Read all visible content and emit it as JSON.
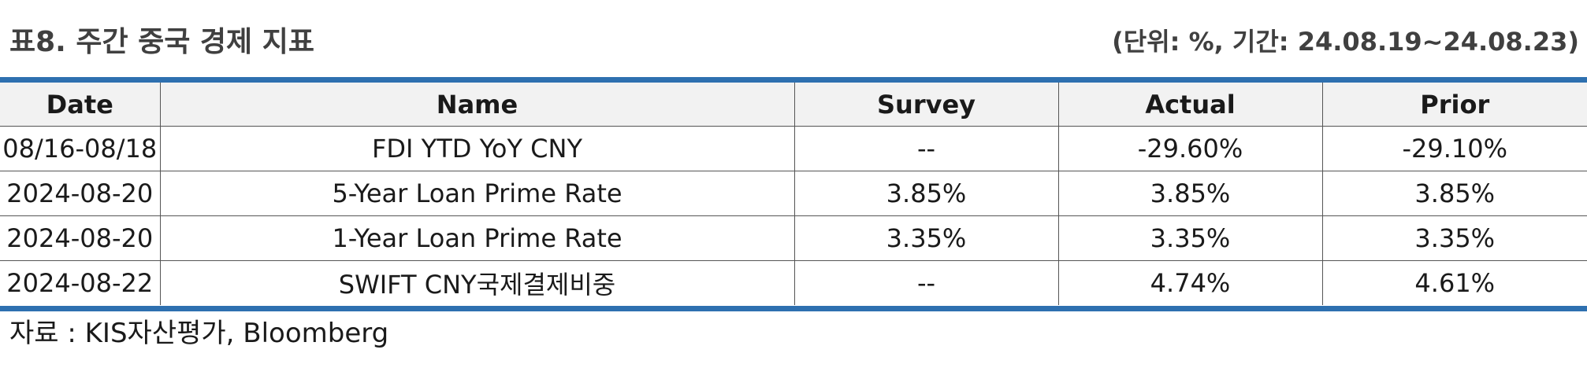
{
  "title": "표8. 주간 중국 경제 지표",
  "unit_note": "(단위: %, 기간: 24.08.19~24.08.23)",
  "table": {
    "headers": {
      "date": "Date",
      "name": "Name",
      "survey": "Survey",
      "actual": "Actual",
      "prior": "Prior"
    },
    "rows": [
      {
        "date": "08/16-08/18",
        "name": "FDI YTD YoY CNY",
        "survey": "--",
        "actual": "-29.60%",
        "prior": "-29.10%"
      },
      {
        "date": "2024-08-20",
        "name": "5-Year Loan Prime Rate",
        "survey": "3.85%",
        "actual": "3.85%",
        "prior": "3.85%"
      },
      {
        "date": "2024-08-20",
        "name": "1-Year Loan Prime Rate",
        "survey": "3.35%",
        "actual": "3.35%",
        "prior": "3.35%"
      },
      {
        "date": "2024-08-22",
        "name": "SWIFT CNY국제결제비중",
        "survey": "--",
        "actual": "4.74%",
        "prior": "4.61%"
      }
    ]
  },
  "source": "자료 : KIS자산평가, Bloomberg",
  "colors": {
    "accent_rule": "#2e70b0",
    "header_bg": "#f2f2f2",
    "title_text": "#404040"
  }
}
